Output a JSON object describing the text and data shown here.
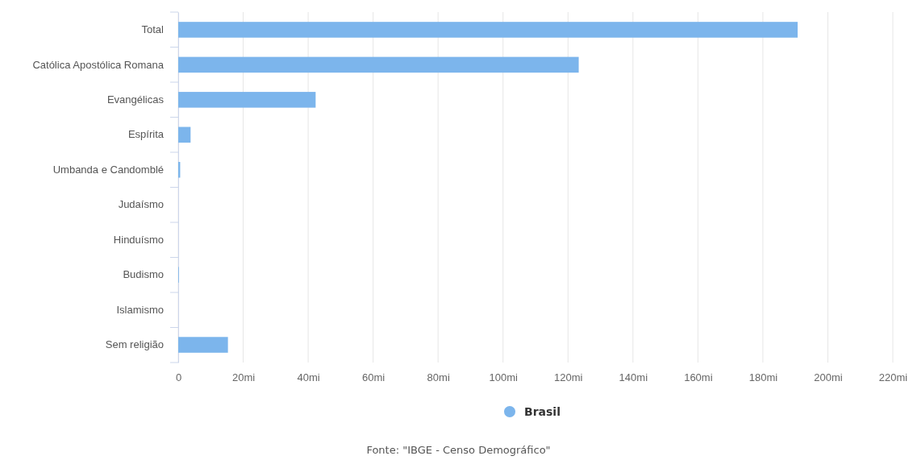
{
  "chart_data": {
    "type": "bar",
    "orientation": "horizontal",
    "categories": [
      "Total",
      "Católica Apostólica Romana",
      "Evangélicas",
      "Espírita",
      "Umbanda e Candomblé",
      "Judaísmo",
      "Hinduísmo",
      "Budismo",
      "Islamismo",
      "Sem religião"
    ],
    "series": [
      {
        "name": "Brasil",
        "color": "#7cb5ec",
        "values": [
          190.7,
          123.3,
          42.3,
          3.8,
          0.6,
          null,
          null,
          0.2,
          null,
          15.3
        ]
      }
    ],
    "xlim": [
      0,
      220
    ],
    "xticks": [
      0,
      {
        "value": 20,
        "label": "20mi"
      },
      {
        "value": 40,
        "label": "40mi"
      },
      {
        "value": 60,
        "label": "60mi"
      },
      {
        "value": 80,
        "label": "80mi"
      },
      {
        "value": 100,
        "label": "100mi"
      },
      {
        "value": 120,
        "label": "120mi"
      },
      {
        "value": 140,
        "label": "140mi"
      },
      {
        "value": 160,
        "label": "160mi"
      },
      {
        "value": 180,
        "label": "180mi"
      },
      {
        "value": 200,
        "label": "200mi"
      },
      {
        "value": 220,
        "label": "220mi"
      }
    ],
    "grid": "x",
    "legend": "bottom",
    "marker": "circle",
    "annotations": [
      "Fonte: \"IBGE - Censo Demográfico\""
    ]
  }
}
